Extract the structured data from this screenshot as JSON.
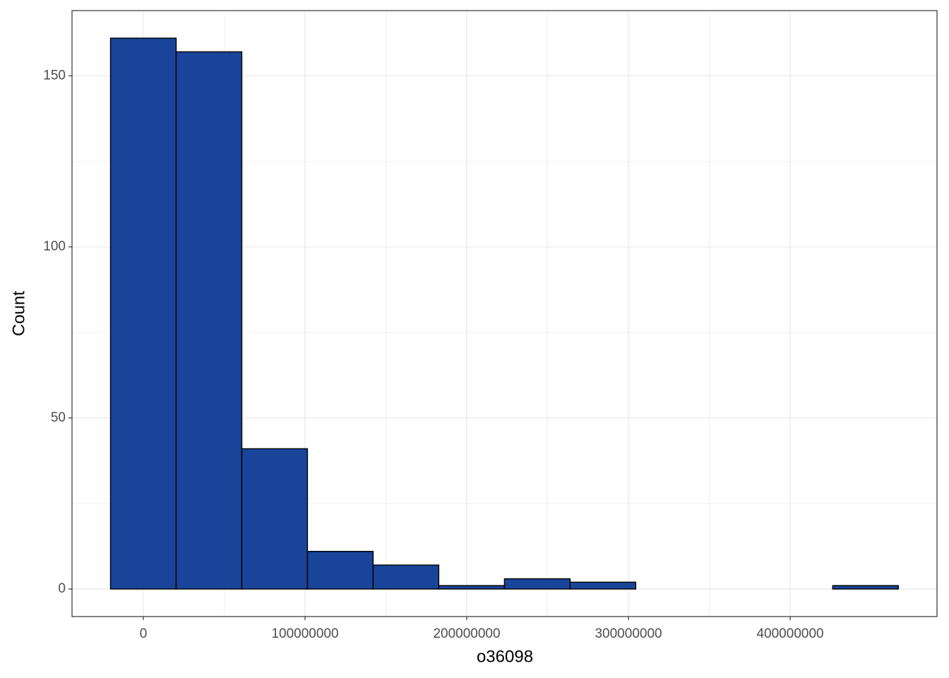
{
  "chart_data": {
    "type": "histogram",
    "x_label": "o36098",
    "y_label": "Count",
    "bins": [
      -20300000,
      20300000,
      60900000,
      101500000,
      142100000,
      182700000,
      223300000,
      263900000,
      304500000,
      345100000,
      385700000,
      426300000,
      466900000
    ],
    "values": [
      161,
      157,
      41,
      11,
      7,
      1,
      3,
      2,
      0,
      0,
      0,
      1
    ],
    "color": "#194499",
    "edge_color": "#000000",
    "xlim": [
      -44100000,
      490800000
    ],
    "xticks": [
      0,
      100000000,
      200000000,
      300000000,
      400000000
    ],
    "ylim": [
      -8.05,
      169.05
    ],
    "yticks": [
      0,
      50,
      100,
      150
    ],
    "grid": true
  }
}
